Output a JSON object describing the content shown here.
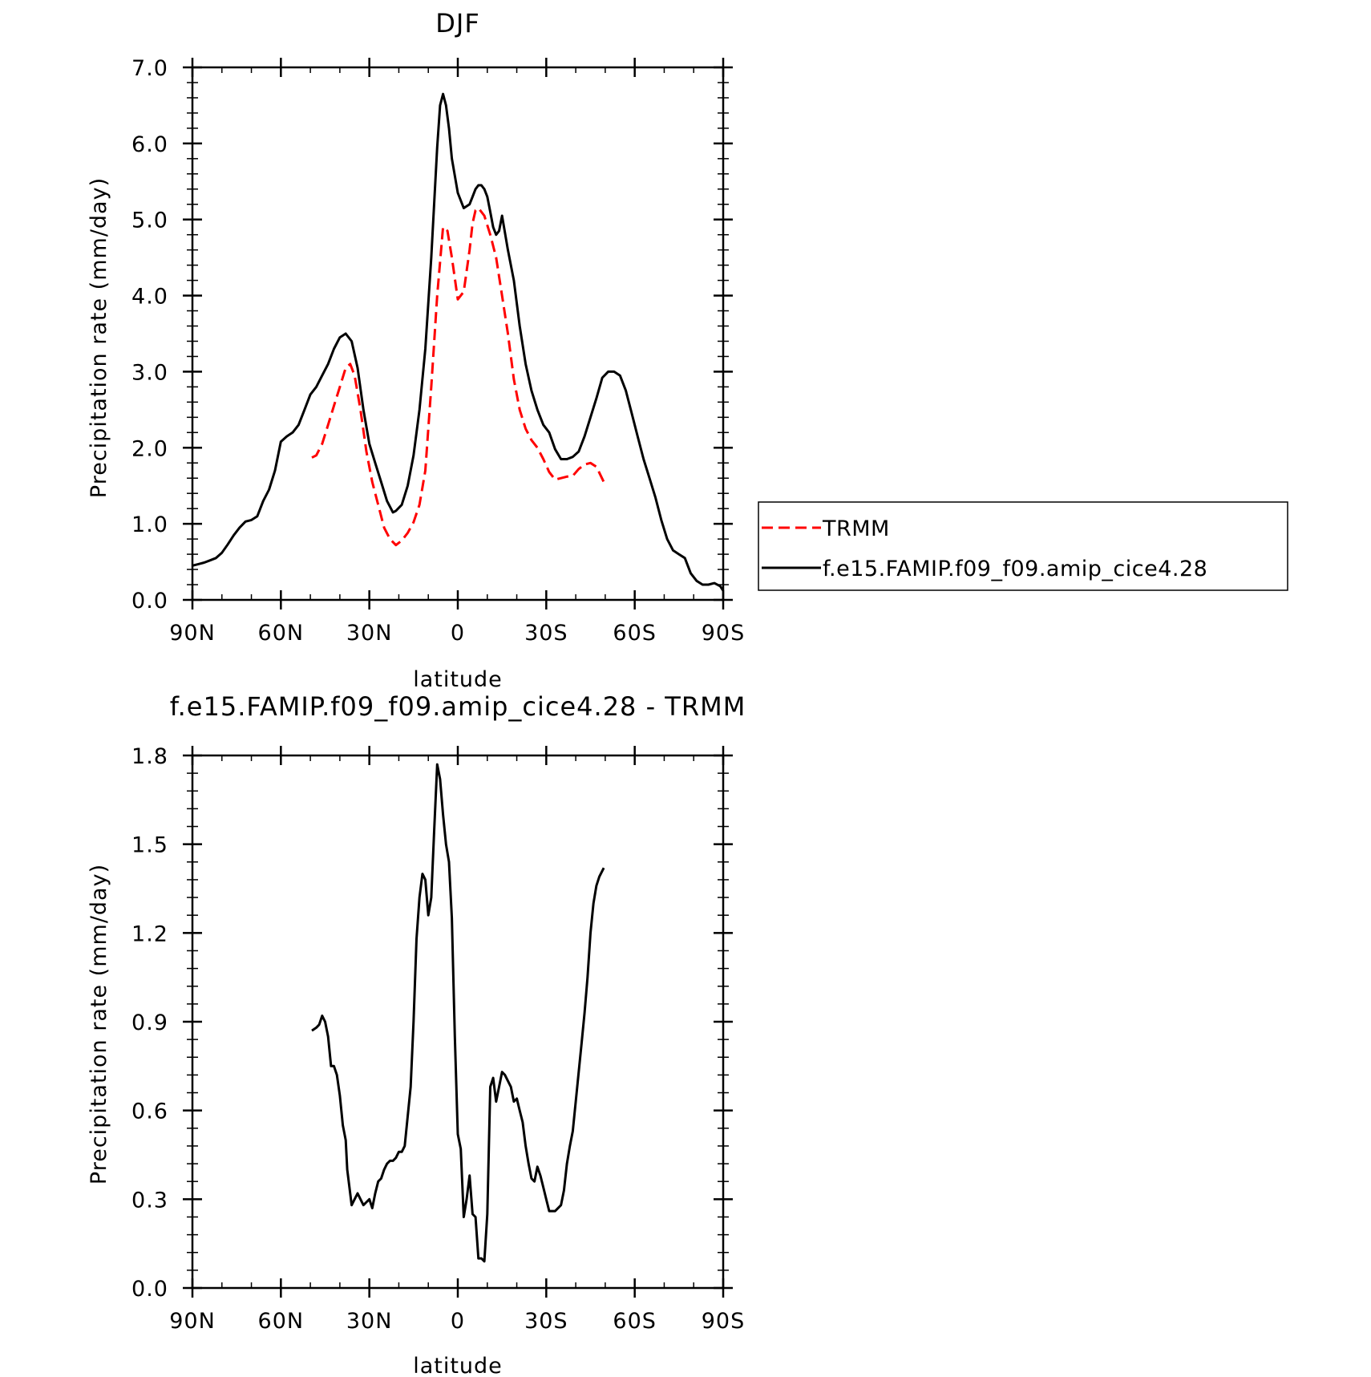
{
  "colors": {
    "model": "#000000",
    "obs": "#ff0000",
    "axis": "#000000",
    "background": "#ffffff"
  },
  "chart_data": [
    {
      "type": "line",
      "title": "DJF",
      "xlabel": "latitude",
      "ylabel": "Precipitation rate (mm/day)",
      "x_ticks": [
        90,
        60,
        30,
        0,
        -30,
        -60,
        -90
      ],
      "x_tick_labels": [
        "90N",
        "60N",
        "30N",
        "0",
        "30S",
        "60S",
        "90S"
      ],
      "xlim": [
        90,
        -90
      ],
      "ylim": [
        0,
        7
      ],
      "y_ticks": [
        0,
        1,
        2,
        3,
        4,
        5,
        6,
        7
      ],
      "y_tick_labels": [
        "0.0",
        "1.0",
        "2.0",
        "3.0",
        "4.0",
        "5.0",
        "6.0",
        "7.0"
      ],
      "grid": false,
      "legend_position": "right, outside plot",
      "series": [
        {
          "name": "TRMM",
          "color": "#ff0000",
          "style": "dashed",
          "x": [
            49.5,
            48,
            46,
            44,
            42,
            40,
            38,
            36.5,
            35,
            33,
            31,
            29,
            27,
            25,
            23,
            21,
            19,
            17,
            15,
            13,
            11,
            9,
            7,
            5,
            3.5,
            2,
            0,
            -2,
            -4,
            -5,
            -6,
            -7,
            -8,
            -9,
            -11,
            -13,
            -15,
            -17,
            -19,
            -21,
            -23,
            -25,
            -27,
            -29,
            -31,
            -33,
            -35,
            -37,
            -39,
            -41,
            -43,
            -45,
            -47,
            -49.5
          ],
          "y": [
            1.87,
            1.9,
            2.05,
            2.3,
            2.55,
            2.8,
            3.05,
            3.1,
            2.95,
            2.5,
            1.95,
            1.55,
            1.25,
            0.95,
            0.8,
            0.72,
            0.78,
            0.88,
            1.02,
            1.25,
            1.7,
            2.8,
            4.0,
            4.9,
            4.85,
            4.5,
            3.95,
            4.05,
            4.6,
            4.95,
            5.12,
            5.15,
            5.1,
            5.05,
            4.8,
            4.5,
            4.0,
            3.5,
            2.9,
            2.5,
            2.25,
            2.1,
            2.0,
            1.85,
            1.68,
            1.58,
            1.6,
            1.62,
            1.63,
            1.72,
            1.78,
            1.8,
            1.75,
            1.55
          ]
        },
        {
          "name": "f.e15.FAMIP.f09_f09.amip_cice4.28",
          "color": "#000000",
          "style": "solid",
          "x": [
            90,
            88,
            86,
            84,
            82,
            80,
            78,
            76,
            74,
            72,
            70,
            68,
            66,
            64,
            62,
            60,
            58,
            56,
            54,
            52,
            50,
            48,
            46,
            44,
            42,
            40,
            38,
            36,
            34,
            32,
            30,
            28,
            26,
            24,
            22,
            21,
            19,
            17,
            15,
            13,
            11,
            9,
            7,
            6,
            5,
            4,
            3,
            2,
            0,
            -2,
            -4,
            -5,
            -6,
            -7,
            -8,
            -9,
            -10,
            -11,
            -12,
            -13,
            -14,
            -15,
            -17,
            -19,
            -21,
            -23,
            -25,
            -27,
            -29,
            -31,
            -33,
            -35,
            -37,
            -39,
            -41,
            -43,
            -45,
            -47,
            -49,
            -51,
            -53,
            -55,
            -57,
            -59,
            -61,
            -63,
            -65,
            -67,
            -69,
            -71,
            -73,
            -75,
            -77,
            -79,
            -81,
            -83,
            -85,
            -87,
            -89,
            -90
          ],
          "y": [
            0.45,
            0.47,
            0.49,
            0.52,
            0.55,
            0.62,
            0.73,
            0.85,
            0.95,
            1.03,
            1.05,
            1.1,
            1.3,
            1.45,
            1.7,
            2.08,
            2.15,
            2.2,
            2.3,
            2.5,
            2.7,
            2.8,
            2.95,
            3.1,
            3.3,
            3.45,
            3.5,
            3.4,
            3.05,
            2.5,
            2.05,
            1.8,
            1.55,
            1.3,
            1.15,
            1.17,
            1.25,
            1.5,
            1.9,
            2.5,
            3.3,
            4.5,
            5.95,
            6.5,
            6.65,
            6.5,
            6.2,
            5.8,
            5.35,
            5.15,
            5.2,
            5.3,
            5.4,
            5.45,
            5.45,
            5.4,
            5.3,
            5.1,
            4.9,
            4.8,
            4.85,
            5.05,
            4.6,
            4.2,
            3.6,
            3.1,
            2.75,
            2.5,
            2.3,
            2.2,
            1.98,
            1.85,
            1.85,
            1.88,
            1.95,
            2.15,
            2.4,
            2.65,
            2.92,
            3.0,
            3.0,
            2.95,
            2.75,
            2.45,
            2.15,
            1.85,
            1.6,
            1.35,
            1.05,
            0.8,
            0.65,
            0.6,
            0.55,
            0.35,
            0.25,
            0.2,
            0.2,
            0.22,
            0.18,
            0.12
          ]
        }
      ]
    },
    {
      "type": "line",
      "title": "f.e15.FAMIP.f09_f09.amip_cice4.28 - TRMM",
      "xlabel": "latitude",
      "ylabel": "Precipitation rate (mm/day)",
      "x_ticks": [
        90,
        60,
        30,
        0,
        -30,
        -60,
        -90
      ],
      "x_tick_labels": [
        "90N",
        "60N",
        "30N",
        "0",
        "30S",
        "60S",
        "90S"
      ],
      "xlim": [
        90,
        -90
      ],
      "ylim": [
        0,
        1.8
      ],
      "y_ticks": [
        0,
        0.3,
        0.6,
        0.9,
        1.2,
        1.5,
        1.8
      ],
      "y_tick_labels": [
        "0.0",
        "0.3",
        "0.6",
        "0.9",
        "1.2",
        "1.5",
        "1.8"
      ],
      "grid": false,
      "series": [
        {
          "color": "#000000",
          "style": "solid",
          "x": [
            49.5,
            48,
            47,
            46,
            45,
            44,
            43,
            42,
            41,
            40,
            39,
            38,
            37.5,
            36,
            35,
            34,
            33,
            32,
            31,
            30,
            29,
            28,
            27,
            26,
            25,
            24,
            23,
            22,
            21,
            20,
            19,
            18,
            17,
            16,
            15,
            14,
            13,
            12,
            11,
            10,
            9,
            8,
            7,
            6,
            5,
            4,
            3,
            2,
            1,
            0,
            -1,
            -2,
            -3,
            -4,
            -5,
            -6,
            -7,
            -8,
            -9,
            -10,
            -11,
            -12,
            -13,
            -14,
            -15,
            -16,
            -17,
            -18,
            -19,
            -20,
            -21,
            -22,
            -23,
            -24,
            -25,
            -26,
            -27,
            -28,
            -29,
            -30,
            -31,
            -32,
            -33,
            -34,
            -35,
            -36,
            -37,
            -38,
            -39,
            -40,
            -41,
            -42,
            -43,
            -44,
            -45,
            -46,
            -47,
            -48,
            -49,
            -49.5
          ],
          "y": [
            0.87,
            0.88,
            0.89,
            0.92,
            0.9,
            0.85,
            0.75,
            0.75,
            0.72,
            0.65,
            0.55,
            0.5,
            0.4,
            0.28,
            0.3,
            0.32,
            0.3,
            0.28,
            0.29,
            0.3,
            0.27,
            0.32,
            0.36,
            0.37,
            0.4,
            0.42,
            0.43,
            0.43,
            0.44,
            0.46,
            0.46,
            0.48,
            0.58,
            0.68,
            0.9,
            1.18,
            1.32,
            1.4,
            1.38,
            1.26,
            1.32,
            1.55,
            1.77,
            1.72,
            1.6,
            1.5,
            1.44,
            1.25,
            0.85,
            0.52,
            0.47,
            0.24,
            0.3,
            0.38,
            0.25,
            0.24,
            0.1,
            0.1,
            0.09,
            0.25,
            0.68,
            0.71,
            0.63,
            0.68,
            0.73,
            0.72,
            0.7,
            0.68,
            0.63,
            0.64,
            0.6,
            0.56,
            0.48,
            0.42,
            0.37,
            0.36,
            0.41,
            0.38,
            0.34,
            0.3,
            0.26,
            0.26,
            0.26,
            0.27,
            0.28,
            0.33,
            0.42,
            0.48,
            0.53,
            0.63,
            0.73,
            0.83,
            0.93,
            1.05,
            1.2,
            1.3,
            1.36,
            1.39,
            1.41,
            1.42
          ]
        }
      ]
    }
  ]
}
